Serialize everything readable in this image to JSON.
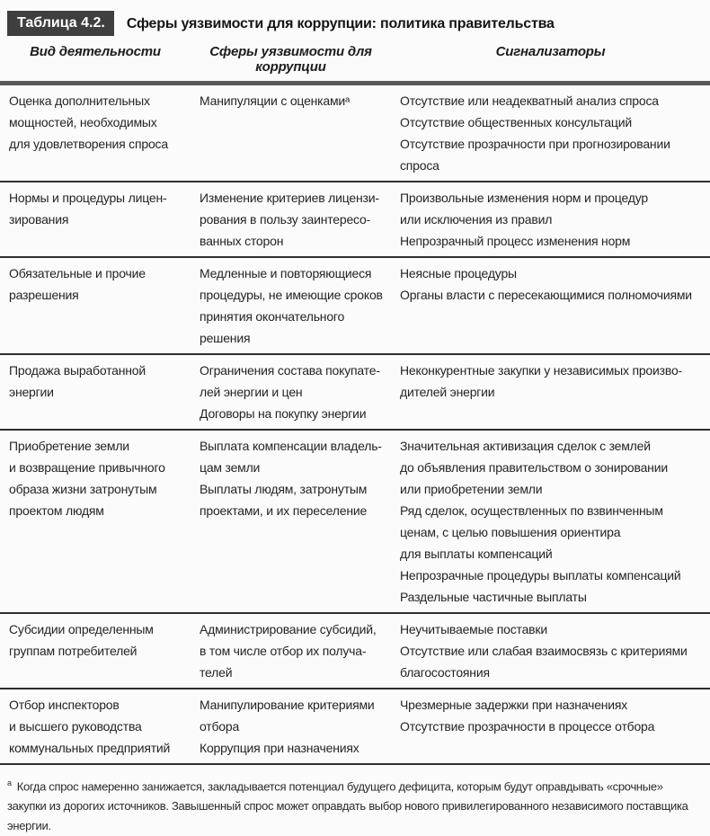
{
  "colors": {
    "background": "#fbfbfb",
    "text": "#262626",
    "caption_box": "#3f3f3f",
    "rule": "#2e2e2e",
    "bar": "#595959"
  },
  "caption": {
    "label": "Таблица 4.2.",
    "title": "Сферы уязвимости для коррупции: политика правительства"
  },
  "columns": [
    "Вид деятельности",
    "Сферы уязвимости для коррупции",
    "Сигнализаторы"
  ],
  "rows": [
    {
      "activity": "Оценка дополнительных\nмощностей, необходимых\nдля удовлетворения спроса",
      "vulnerabilities": [
        "Манипуляции с оценкамиᵃ"
      ],
      "signals": [
        "Отсутствие или неадекватный анализ спроса",
        "Отсутствие общественных консультаций",
        "Отсутствие прозрачности при прогнозировании\nспроса"
      ]
    },
    {
      "activity": "Нормы и процедуры лицен-\nзирования",
      "vulnerabilities": [
        "Изменение критериев лицензи-\nрования в пользу заинтересо-\nванных сторон"
      ],
      "signals": [
        "Произвольные изменения норм и процедур\nили исключения из правил",
        "Непрозрачный процесс изменения норм"
      ]
    },
    {
      "activity": "Обязательные и прочие\nразрешения",
      "vulnerabilities": [
        "Медленные и повторяющиеся\nпроцедуры, не имеющие сроков\nпринятия окончательного решения"
      ],
      "signals": [
        "Неясные процедуры",
        "Органы власти с пересекающимися полномочиями"
      ]
    },
    {
      "activity": "Продажа выработанной\nэнергии",
      "vulnerabilities": [
        "Ограничения состава покупате-\nлей энергии и цен",
        "Договоры на покупку энергии"
      ],
      "signals": [
        "Неконкурентные закупки у независимых произво-\nдителей энергии"
      ]
    },
    {
      "activity": "Приобретение земли\nи возвращение привычного\nобраза жизни затронутым\nпроектом людям",
      "vulnerabilities": [
        "Выплата компенсации владель-\nцам земли",
        "Выплаты людям, затронутым\nпроектами, и их переселение"
      ],
      "signals": [
        "Значительная активизация сделок с землей\nдо объявления правительством о зонировании\nили приобретении земли",
        "Ряд сделок, осуществленных по взвинченным\nценам, с целью повышения ориентира\nдля выплаты компенсаций",
        "Непрозрачные процедуры выплаты компенсаций",
        "Раздельные частичные выплаты"
      ]
    },
    {
      "activity": "Субсидии определенным\nгруппам потребителей",
      "vulnerabilities": [
        "Администрирование субсидий,\nв том числе отбор их получа-\nтелей"
      ],
      "signals": [
        "Неучитываемые поставки",
        "Отсутствие или слабая взаимосвязь с критериями\nблагосостояния"
      ]
    },
    {
      "activity": "Отбор инспекторов\nи высшего руководства\nкоммунальных предприятий",
      "vulnerabilities": [
        "Манипулирование критериями\nотбора",
        "Коррупция при назначениях"
      ],
      "signals": [
        "Чрезмерные задержки при назначениях",
        "Отсутствие прозрачности в процессе отбора"
      ]
    }
  ],
  "footnote": {
    "marker": "a",
    "text": "Когда спрос намеренно занижается, закладывается потенциал будущего дефицита, которым будут оправдывать «срочные» закупки из дорогих источников. Завышенный спрос может оправдать выбор нового привилегированного независимого поставщика энергии."
  }
}
